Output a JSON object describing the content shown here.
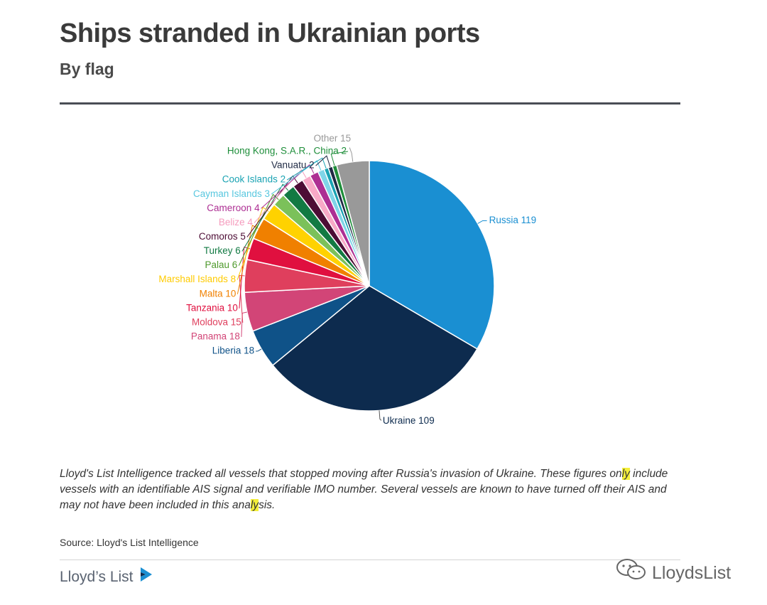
{
  "header": {
    "title": "Ships stranded in Ukrainian ports",
    "subtitle": "By flag"
  },
  "chart_data": {
    "type": "pie",
    "title": "Ships stranded in Ukrainian ports",
    "subtitle": "By flag",
    "slices": [
      {
        "label": "Russia",
        "value": 119,
        "color": "#1a8fd2",
        "label_color": "#1a8fd2"
      },
      {
        "label": "Ukraine",
        "value": 109,
        "color": "#0d2b4e",
        "label_color": "#0d2b4e"
      },
      {
        "label": "Liberia",
        "value": 18,
        "color": "#0f5288",
        "label_color": "#0f5288"
      },
      {
        "label": "Panama",
        "value": 18,
        "color": "#d24577",
        "label_color": "#d24577"
      },
      {
        "label": "Moldova",
        "value": 15,
        "color": "#df3f5d",
        "label_color": "#df3f5d"
      },
      {
        "label": "Tanzania",
        "value": 10,
        "color": "#e0103f",
        "label_color": "#e0103f"
      },
      {
        "label": "Malta",
        "value": 10,
        "color": "#f08000",
        "label_color": "#f08000"
      },
      {
        "label": "Marshall Islands",
        "value": 8,
        "color": "#ffd200",
        "label_color": "#ffcb00"
      },
      {
        "label": "Palau",
        "value": 6,
        "color": "#7bc15a",
        "label_color": "#4f9a2d"
      },
      {
        "label": "Turkey",
        "value": 6,
        "color": "#127a43",
        "label_color": "#127a43"
      },
      {
        "label": "Comoros",
        "value": 5,
        "color": "#4d0d35",
        "label_color": "#4d0d35"
      },
      {
        "label": "Belize",
        "value": 4,
        "color": "#f8a9c7",
        "label_color": "#f59bbd"
      },
      {
        "label": "Cameroon",
        "value": 4,
        "color": "#ad2f93",
        "label_color": "#ad2f93"
      },
      {
        "label": "Cayman Islands",
        "value": 3,
        "color": "#7fd5e8",
        "label_color": "#58c7df"
      },
      {
        "label": "Cook Islands",
        "value": 2,
        "color": "#1aa3b3",
        "label_color": "#1aa3b3"
      },
      {
        "label": "Vanuatu",
        "value": 2,
        "color": "#1f2a44",
        "label_color": "#1f2a44"
      },
      {
        "label": "Hong Kong, S.A.R., China",
        "value": 2,
        "color": "#1e8e3a",
        "label_color": "#1e8e3a"
      },
      {
        "label": "Other",
        "value": 15,
        "color": "#999999",
        "label_color": "#999999"
      }
    ]
  },
  "footer": {
    "note": {
      "p1": "Lloyd's List Intelligence tracked all vessels that stopped moving after Russia's invasion of Ukraine. These figures on",
      "p2": "ly",
      "p3": " include vessels with an identifiable AIS signal and verifiable IMO number. Several vessels are known to have turned off their AIS and may not have been included in this ana",
      "p4": "ly",
      "p5": "sis."
    },
    "source": "Source: Lloyd's List Intelligence",
    "logo_text": "Lloyd’s List",
    "watermark": "LloydsList"
  }
}
